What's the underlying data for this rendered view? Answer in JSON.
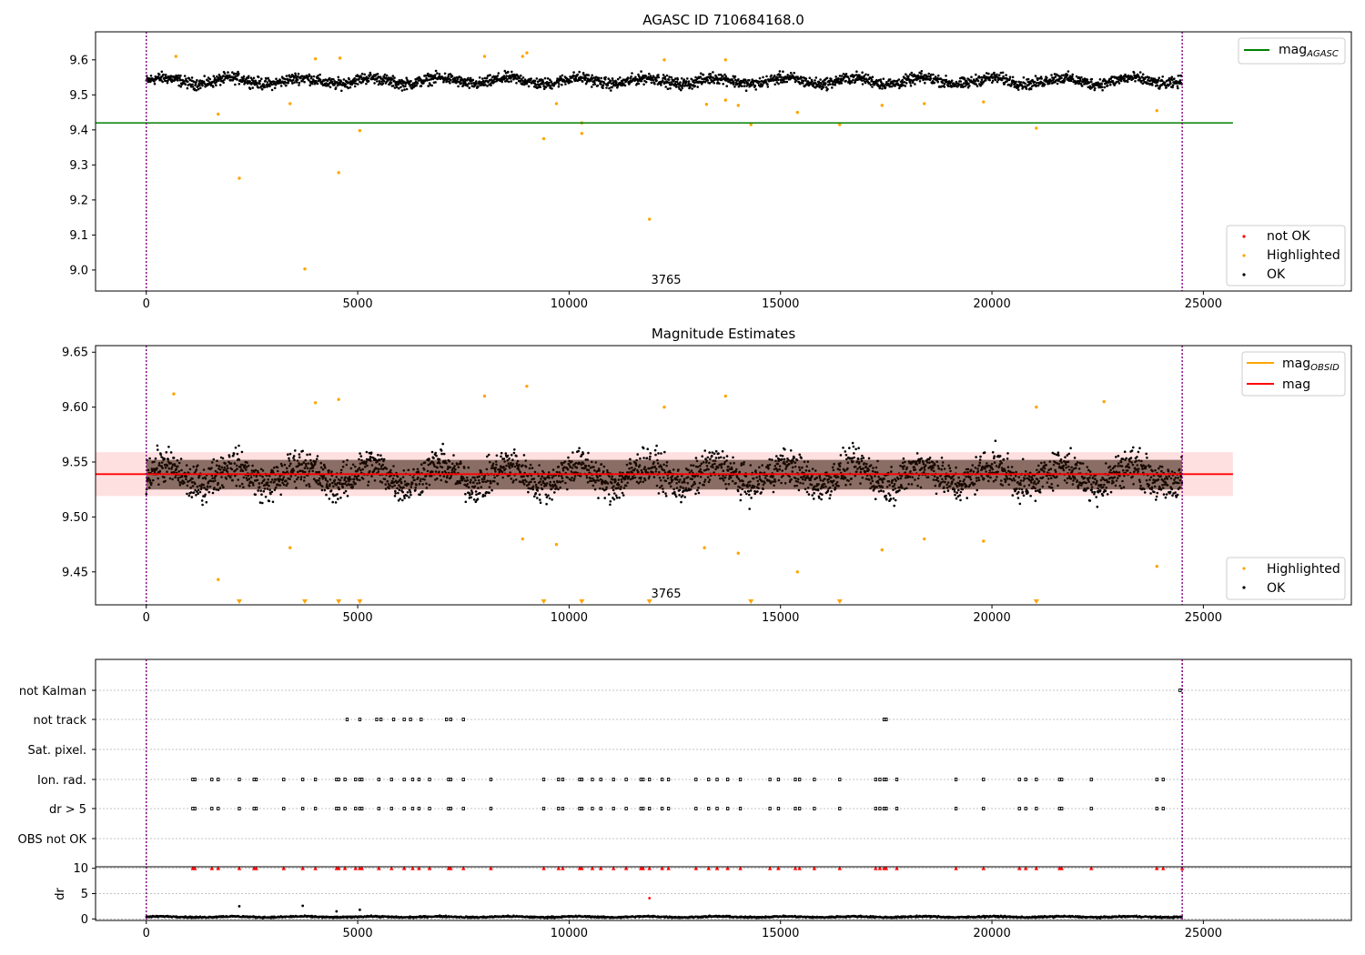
{
  "colors": {
    "ok": "#000000",
    "highlighted": "#ffa500",
    "not_ok": "#ff0000",
    "agasc_line": "#008000",
    "obsid_line": "#ffa500",
    "mag_line": "#ff0000",
    "band": "#ffcccc",
    "boundary": "#800080",
    "grid": "#b0b0b0"
  },
  "chart_data": [
    {
      "type": "scatter",
      "title": "AGASC ID 710684168.0",
      "xlabel": "",
      "ylabel": "",
      "xlim": [
        -1200,
        28500
      ],
      "ylim": [
        8.94,
        9.68
      ],
      "xticks": [
        0,
        5000,
        10000,
        15000,
        20000,
        25000
      ],
      "yticks": [
        9.0,
        9.1,
        9.2,
        9.3,
        9.4,
        9.5,
        9.6
      ],
      "ytick_labels": [
        "9.0",
        "9.1",
        "9.2",
        "9.3",
        "9.4",
        "9.5",
        "9.6"
      ],
      "grid": false,
      "annotation": "3765",
      "boundaries": [
        0,
        24500
      ],
      "ok_band": {
        "x_range": [
          0,
          24500
        ],
        "center": 9.54,
        "spread": 0.025,
        "min": 9.495,
        "max": 9.59
      },
      "hlines": [
        {
          "name": "mag_AGASC",
          "y": 9.42,
          "x_range": [
            -1200,
            25700
          ]
        }
      ],
      "highlighted": [
        [
          700,
          9.61
        ],
        [
          1700,
          9.445
        ],
        [
          2200,
          9.262
        ],
        [
          3400,
          9.475
        ],
        [
          3750,
          9.003
        ],
        [
          4000,
          9.603
        ],
        [
          4550,
          9.278
        ],
        [
          4580,
          9.605
        ],
        [
          5050,
          9.398
        ],
        [
          8000,
          9.61
        ],
        [
          8900,
          9.61
        ],
        [
          9000,
          9.62
        ],
        [
          9400,
          9.375
        ],
        [
          9700,
          9.475
        ],
        [
          10300,
          9.39
        ],
        [
          10300,
          9.42
        ],
        [
          11900,
          9.145
        ],
        [
          12250,
          9.6
        ],
        [
          13250,
          9.473
        ],
        [
          13700,
          9.485
        ],
        [
          13700,
          9.6
        ],
        [
          14000,
          9.47
        ],
        [
          14300,
          9.415
        ],
        [
          15400,
          9.45
        ],
        [
          16400,
          9.415
        ],
        [
          17400,
          9.47
        ],
        [
          18400,
          9.475
        ],
        [
          19800,
          9.48
        ],
        [
          21050,
          9.405
        ],
        [
          23900,
          9.455
        ]
      ],
      "legend_lines": [
        {
          "label": "mag",
          "subscript": "AGASC",
          "color": "#008000"
        }
      ],
      "legend_points": [
        {
          "label": "not OK",
          "color": "#ff0000"
        },
        {
          "label": "Highlighted",
          "color": "#ffa500"
        },
        {
          "label": "OK",
          "color": "#000000"
        }
      ]
    },
    {
      "type": "scatter",
      "title": "Magnitude Estimates",
      "xlabel": "",
      "ylabel": "",
      "xlim": [
        -1200,
        28500
      ],
      "ylim": [
        9.42,
        9.656
      ],
      "xticks": [
        0,
        5000,
        10000,
        15000,
        20000,
        25000
      ],
      "yticks": [
        9.45,
        9.5,
        9.55,
        9.6,
        9.65
      ],
      "ytick_labels": [
        "9.45",
        "9.50",
        "9.55",
        "9.60",
        "9.65"
      ],
      "grid": false,
      "annotation": "3765",
      "boundaries": [
        0,
        24500
      ],
      "mag": 9.539,
      "band": [
        9.519,
        9.559
      ],
      "ok_band": {
        "x_range": [
          0,
          24500
        ],
        "center": 9.538,
        "spread": 0.025,
        "min": 9.485,
        "max": 9.598
      },
      "highlighted": [
        [
          650,
          9.612
        ],
        [
          1700,
          9.443
        ],
        [
          3400,
          9.472
        ],
        [
          4000,
          9.604
        ],
        [
          4550,
          9.607
        ],
        [
          8000,
          9.61
        ],
        [
          8900,
          9.48
        ],
        [
          9000,
          9.619
        ],
        [
          9700,
          9.475
        ],
        [
          12250,
          9.6
        ],
        [
          13200,
          9.472
        ],
        [
          13700,
          9.61
        ],
        [
          14000,
          9.467
        ],
        [
          15400,
          9.45
        ],
        [
          17400,
          9.47
        ],
        [
          18400,
          9.48
        ],
        [
          19800,
          9.478
        ],
        [
          21050,
          9.6
        ],
        [
          22650,
          9.605
        ],
        [
          23900,
          9.455
        ]
      ],
      "offscale_markers": [
        2200,
        3750,
        4550,
        5050,
        9400,
        10300,
        11900,
        14300,
        16400,
        21050
      ],
      "legend_lines": [
        {
          "label": "mag",
          "subscript": "OBSID",
          "color": "#ffa500"
        },
        {
          "label": "mag",
          "subscript": "",
          "color": "#ff0000"
        }
      ],
      "legend_points": [
        {
          "label": "Highlighted",
          "color": "#ffa500"
        },
        {
          "label": "OK",
          "color": "#000000"
        }
      ]
    },
    {
      "type": "scatter",
      "title": "",
      "xlabel": "",
      "ylabel": "",
      "xlim": [
        -1200,
        28500
      ],
      "categories": [
        "not Kalman",
        "not track",
        "Sat. pixel.",
        "Ion. rad.",
        "dr > 5",
        "OBS not OK"
      ],
      "grid": true,
      "boundaries": [
        0,
        24500
      ],
      "flags": {
        "not Kalman": [
          24450
        ],
        "not track": [
          4750,
          5050,
          5450,
          5550,
          5850,
          6100,
          6250,
          6500,
          7100,
          7200,
          7500,
          17450,
          17500
        ],
        "Sat. pixel.": [],
        "Ion. rad.": [
          1100,
          1150,
          1550,
          1700,
          2200,
          2550,
          2600,
          3250,
          3700,
          4000,
          4500,
          4550,
          4700,
          4950,
          5050,
          5100,
          5500,
          5800,
          6100,
          6300,
          6450,
          6700,
          7150,
          7200,
          7500,
          8150,
          9400,
          9750,
          9850,
          10250,
          10300,
          10550,
          10750,
          11050,
          11350,
          11700,
          11750,
          11900,
          12200,
          12350,
          13000,
          13300,
          13500,
          13750,
          14050,
          14750,
          14950,
          15350,
          15450,
          15800,
          16400,
          17250,
          17350,
          17450,
          17500,
          17750,
          19150,
          19800,
          20650,
          20800,
          21050,
          21600,
          21650,
          22350,
          23900,
          24050
        ],
        "dr > 5": [
          1100,
          1150,
          1550,
          1700,
          2200,
          2550,
          2600,
          3250,
          3700,
          4000,
          4500,
          4550,
          4700,
          4950,
          5050,
          5100,
          5500,
          5800,
          6100,
          6300,
          6450,
          6700,
          7150,
          7200,
          7500,
          8150,
          9400,
          9750,
          9850,
          10250,
          10300,
          10550,
          10750,
          11050,
          11350,
          11700,
          11750,
          11900,
          12200,
          12350,
          13000,
          13300,
          13500,
          13750,
          14050,
          14750,
          14950,
          15350,
          15450,
          15800,
          16400,
          17250,
          17350,
          17450,
          17500,
          17750,
          19150,
          19800,
          20650,
          20800,
          21050,
          21600,
          21650,
          22350,
          23900,
          24050
        ],
        "OBS not OK": []
      }
    },
    {
      "type": "scatter",
      "title": "",
      "xlabel": "",
      "ylabel": "dr",
      "xlim": [
        -1200,
        28500
      ],
      "ylim": [
        -0.3,
        10.3
      ],
      "yticks": [
        0,
        5,
        10
      ],
      "ytick_labels": [
        "0",
        "5",
        "10"
      ],
      "xticks": [
        0,
        5000,
        10000,
        15000,
        20000,
        25000
      ],
      "grid": true,
      "boundaries": [
        0,
        24500
      ],
      "clipped_marker_y": 10,
      "ok_band": {
        "x_range": [
          0,
          24500
        ],
        "center": 0.4,
        "spread": 0.25,
        "min": 0,
        "max": 1.0
      },
      "outliers": [
        [
          2200,
          2.5
        ],
        [
          3700,
          2.6
        ],
        [
          4500,
          1.5
        ],
        [
          5050,
          1.8
        ],
        [
          11900,
          4.1
        ]
      ]
    }
  ]
}
